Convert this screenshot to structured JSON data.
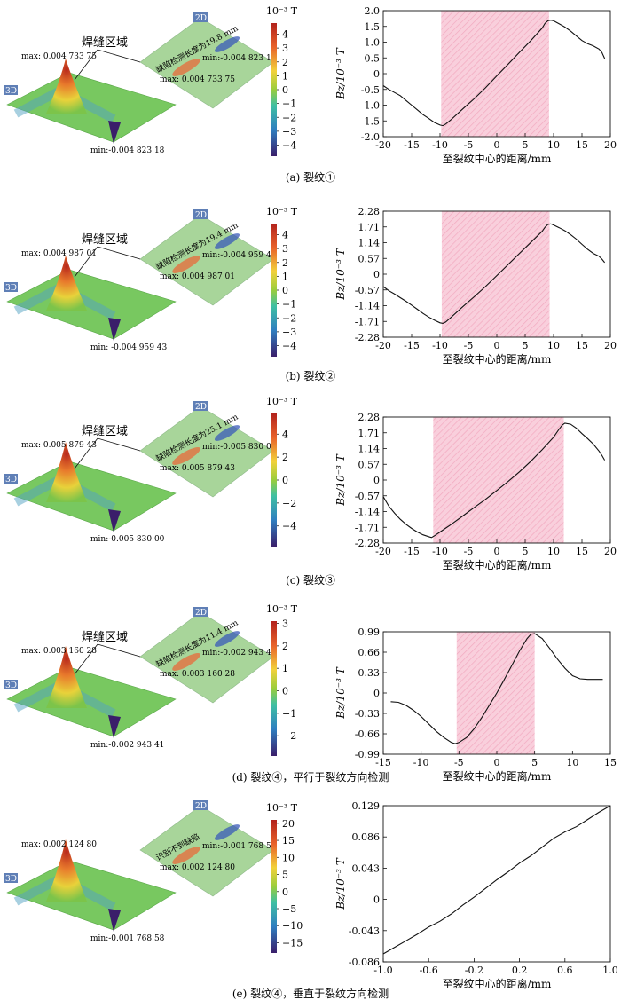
{
  "panels": [
    {
      "caption": "(a)  裂纹①",
      "colorbar": {
        "unit": "10⁻³ T",
        "ticks": [
          4,
          3,
          2,
          1,
          0,
          -1,
          -2,
          -3,
          -4
        ],
        "min": -4.8,
        "max": 4.8
      },
      "map": {
        "region_label": "焊缝区域",
        "label_3d": "3D",
        "label_2d": "2D",
        "max_label": "max: 0.004 733 75",
        "min_label": "min:-0.004 823 18",
        "map_max_label": "max: 0.004 733 75",
        "map_min_label": "min:-0.004 823 18",
        "length_label": "缺陷检测长度为19.8 mm"
      },
      "chart_data": {
        "type": "line",
        "xlabel": "至裂纹中心的距离/mm",
        "ylabel": "Bz/10⁻³ T",
        "xlim": [
          -20,
          20
        ],
        "ylim": [
          -2.0,
          2.0
        ],
        "xticks": [
          -20,
          -15,
          -10,
          -5,
          0,
          5,
          10,
          15,
          20
        ],
        "yticks": [
          "-2.0",
          "-1.5",
          "-1.0",
          "-0.5",
          "0",
          "0.5",
          "1.0",
          "1.5",
          "2.0"
        ],
        "yticks_values": [
          -2.0,
          -1.5,
          -1.0,
          -0.5,
          0,
          0.5,
          1.0,
          1.5,
          2.0
        ],
        "shaded_range": [
          -9.8,
          9.2
        ],
        "x": [
          -20,
          -19,
          -18,
          -17,
          -16,
          -15,
          -14,
          -13,
          -12,
          -11,
          -10,
          -9.5,
          -9,
          -8,
          -6,
          -4,
          -2,
          0,
          2,
          4,
          6,
          8,
          8.5,
          9,
          9.5,
          10,
          11,
          12,
          13,
          14,
          15,
          16,
          17,
          18,
          18.5,
          19
        ],
        "y": [
          -0.38,
          -0.5,
          -0.6,
          -0.7,
          -0.85,
          -1.0,
          -1.15,
          -1.3,
          -1.42,
          -1.55,
          -1.63,
          -1.65,
          -1.6,
          -1.45,
          -1.12,
          -0.8,
          -0.45,
          -0.07,
          0.3,
          0.68,
          1.05,
          1.45,
          1.6,
          1.68,
          1.7,
          1.68,
          1.58,
          1.48,
          1.35,
          1.2,
          1.05,
          0.95,
          0.88,
          0.78,
          0.68,
          0.48
        ]
      }
    },
    {
      "caption": "(b)  裂纹②",
      "colorbar": {
        "unit": "10⁻³ T",
        "ticks": [
          4,
          3,
          2,
          1,
          0,
          -1,
          -2,
          -3,
          -4
        ],
        "min": -4.8,
        "max": 4.8
      },
      "map": {
        "region_label": "焊缝区域",
        "label_3d": "3D",
        "label_2d": "2D",
        "max_label": "max: 0.004 987 01",
        "min_label": "min: -0.004 959 43",
        "map_max_label": "max: 0.004 987 01",
        "map_min_label": "min:-0.004 959 43",
        "length_label": "缺陷检测长度为19.4 mm"
      },
      "chart_data": {
        "type": "line",
        "xlabel": "至裂纹中心的距离/mm",
        "ylabel": "Bz/10⁻³ T",
        "xlim": [
          -20,
          20
        ],
        "ylim": [
          -2.28,
          2.28
        ],
        "xticks": [
          -20,
          -15,
          -10,
          -5,
          0,
          5,
          10,
          15,
          20
        ],
        "yticks": [
          "-2.28",
          "-1.71",
          "-1.14",
          "-0.57",
          "0",
          "0.57",
          "1.14",
          "1.71",
          "2.28"
        ],
        "yticks_values": [
          -2.28,
          -1.71,
          -1.14,
          -0.57,
          0,
          0.57,
          1.14,
          1.71,
          2.28
        ],
        "shaded_range": [
          -9.7,
          9.3
        ],
        "x": [
          -20,
          -19,
          -18,
          -17,
          -16,
          -15,
          -14,
          -13,
          -12,
          -11,
          -10,
          -9.5,
          -9,
          -8,
          -6,
          -4,
          -2,
          0,
          2,
          4,
          6,
          8,
          8.5,
          9,
          9.5,
          10,
          11,
          12,
          13,
          14,
          15,
          16,
          17,
          18,
          18.5,
          19
        ],
        "y": [
          -0.45,
          -0.6,
          -0.72,
          -0.85,
          -0.98,
          -1.12,
          -1.27,
          -1.42,
          -1.55,
          -1.66,
          -1.76,
          -1.78,
          -1.73,
          -1.55,
          -1.18,
          -0.82,
          -0.45,
          -0.05,
          0.35,
          0.75,
          1.15,
          1.55,
          1.7,
          1.8,
          1.82,
          1.78,
          1.68,
          1.57,
          1.43,
          1.27,
          1.08,
          0.9,
          0.75,
          0.65,
          0.55,
          0.42
        ]
      }
    },
    {
      "caption": "(c)  裂纹③",
      "colorbar": {
        "unit": "10⁻³ T",
        "ticks": [
          4,
          2,
          0,
          -2,
          -4
        ],
        "min": -5.8,
        "max": 5.8
      },
      "map": {
        "region_label": "焊缝区域",
        "label_3d": "3D",
        "label_2d": "2D",
        "max_label": "max: 0.005 879 43",
        "min_label": "min:-0.005 830 00",
        "map_max_label": "max: 0.005 879 43",
        "map_min_label": "min:-0.005 830 00",
        "length_label": "缺陷检测长度为25.1 mm"
      },
      "chart_data": {
        "type": "line",
        "xlabel": "至裂纹中心的距离/mm",
        "ylabel": "Bz/10⁻³ T",
        "xlim": [
          -20,
          20
        ],
        "ylim": [
          -2.28,
          2.28
        ],
        "xticks": [
          -20,
          -15,
          -10,
          -5,
          0,
          5,
          10,
          15,
          20
        ],
        "yticks": [
          "-2.28",
          "-1.71",
          "-1.14",
          "-0.57",
          "0",
          "0.57",
          "1.14",
          "1.71",
          "2.28"
        ],
        "yticks_values": [
          -2.28,
          -1.71,
          -1.14,
          -0.57,
          0,
          0.57,
          1.14,
          1.71,
          2.28
        ],
        "shaded_range": [
          -11.2,
          11.8
        ],
        "x": [
          -20,
          -19,
          -18,
          -17,
          -16,
          -15,
          -14,
          -13,
          -12,
          -11.5,
          -11,
          -10,
          -8,
          -6,
          -4,
          -2,
          0,
          2,
          4,
          6,
          8,
          10,
          11,
          11.5,
          12,
          13,
          14,
          15,
          16,
          17,
          18,
          18.5,
          19
        ],
        "y": [
          -0.6,
          -0.95,
          -1.2,
          -1.42,
          -1.6,
          -1.75,
          -1.88,
          -1.98,
          -2.05,
          -2.08,
          -2.02,
          -1.88,
          -1.6,
          -1.3,
          -1.0,
          -0.7,
          -0.38,
          -0.05,
          0.3,
          0.68,
          1.1,
          1.55,
          1.85,
          1.98,
          2.06,
          2.02,
          1.88,
          1.68,
          1.5,
          1.3,
          1.05,
          0.9,
          0.72
        ]
      }
    },
    {
      "caption": "(d)  裂纹④，平行于裂纹方向检测",
      "colorbar": {
        "unit": "10⁻³ T",
        "ticks": [
          3,
          2,
          1,
          0,
          -1,
          -2
        ],
        "min": -2.9,
        "max": 3.1
      },
      "map": {
        "region_label": "焊缝区域",
        "label_3d": "3D",
        "label_2d": "2D",
        "max_label": "max: 0.003 160 28",
        "min_label": "min:-0.002 943 41",
        "map_max_label": "max: 0.003 160 28",
        "map_min_label": "min:-0.002 943 41",
        "length_label": "缺陷检测长度为11.4 mm"
      },
      "chart_data": {
        "type": "line",
        "xlabel": "至裂纹中心的距离/mm",
        "ylabel": "Bz/10⁻³ T",
        "xlim": [
          -15,
          15
        ],
        "ylim": [
          -0.99,
          0.99
        ],
        "xticks": [
          -15,
          -10,
          -5,
          0,
          5,
          10,
          15
        ],
        "yticks": [
          "-0.99",
          "-0.66",
          "-0.33",
          "0",
          "0.33",
          "0.66",
          "0.99"
        ],
        "yticks_values": [
          -0.99,
          -0.66,
          -0.33,
          0,
          0.33,
          0.66,
          0.99
        ],
        "shaded_range": [
          -5.3,
          5.0
        ],
        "x": [
          -14,
          -13,
          -12,
          -11,
          -10,
          -9,
          -8,
          -7,
          -6,
          -5.5,
          -5,
          -4,
          -3,
          -2,
          -1,
          0,
          1,
          2,
          3,
          4,
          4.5,
          5,
          6,
          7,
          8,
          9,
          10,
          11,
          12,
          13,
          14
        ],
        "y": [
          -0.14,
          -0.15,
          -0.2,
          -0.28,
          -0.38,
          -0.5,
          -0.62,
          -0.72,
          -0.8,
          -0.82,
          -0.8,
          -0.72,
          -0.58,
          -0.4,
          -0.2,
          0.0,
          0.22,
          0.45,
          0.68,
          0.88,
          0.95,
          0.96,
          0.88,
          0.72,
          0.55,
          0.4,
          0.28,
          0.23,
          0.22,
          0.22,
          0.22
        ]
      }
    },
    {
      "caption": "(e)  裂纹④，垂直于裂纹方向检测",
      "colorbar": {
        "unit": "10⁻³ T",
        "ticks": [
          20,
          15,
          10,
          5,
          0,
          -5,
          -10,
          -15
        ],
        "min": -18,
        "max": 21
      },
      "map": {
        "region_label": "",
        "label_3d": "3D",
        "label_2d": "2D",
        "max_label": "max: 0.002 124 80",
        "min_label": "min:-0.001 768 58",
        "map_max_label": "max: 0.002 124 80",
        "map_min_label": "min:-0.001 768 58",
        "length_label": "识别不到缺陷"
      },
      "chart_data": {
        "type": "line",
        "xlabel": "至裂纹中心的距离/mm",
        "ylabel": "Bz/10⁻³ T",
        "xlim": [
          -1.0,
          1.0
        ],
        "ylim": [
          -0.086,
          0.129
        ],
        "xticks": [
          "-1.0",
          "-0.6",
          "-0.2",
          "0.2",
          "0.6",
          "1.0"
        ],
        "xticks_values": [
          -1.0,
          -0.6,
          -0.2,
          0.2,
          0.6,
          1.0
        ],
        "yticks": [
          "-0.086",
          "-0.043",
          "0",
          "0.043",
          "0.086",
          "0.129"
        ],
        "yticks_values": [
          -0.086,
          -0.043,
          0,
          0.043,
          0.086,
          0.129
        ],
        "shaded_range": null,
        "x": [
          -1.0,
          -0.9,
          -0.8,
          -0.7,
          -0.6,
          -0.5,
          -0.4,
          -0.3,
          -0.2,
          -0.1,
          0,
          0.1,
          0.2,
          0.3,
          0.4,
          0.5,
          0.6,
          0.7,
          0.8,
          0.9,
          1.0
        ],
        "y": [
          -0.075,
          -0.066,
          -0.057,
          -0.048,
          -0.038,
          -0.03,
          -0.02,
          -0.008,
          0.003,
          0.015,
          0.027,
          0.038,
          0.05,
          0.06,
          0.072,
          0.084,
          0.093,
          0.1,
          0.11,
          0.12,
          0.129
        ]
      }
    }
  ]
}
